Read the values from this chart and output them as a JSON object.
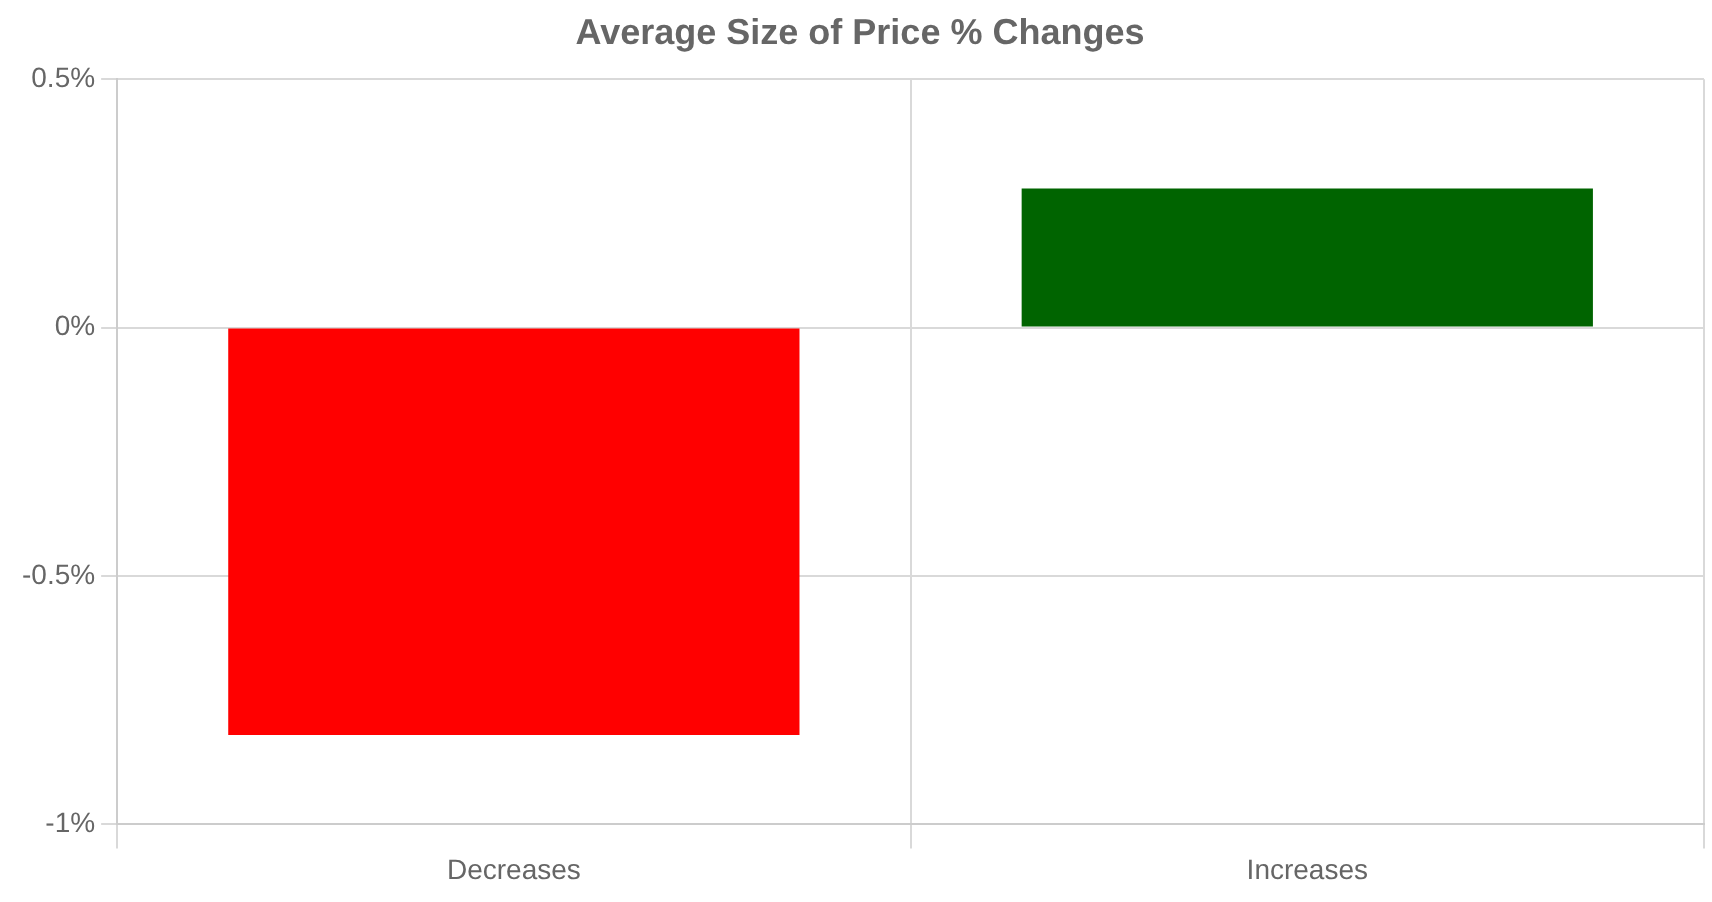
{
  "chart_data": {
    "type": "bar",
    "title": "Average Size of Price % Changes",
    "categories": [
      "Decreases",
      "Increases"
    ],
    "values": [
      -0.82,
      0.28
    ],
    "colors": [
      "#ff0000",
      "#006400"
    ],
    "ylim": [
      -1,
      0.5
    ],
    "yticks": [
      {
        "value": -1,
        "label": "-1%"
      },
      {
        "value": -0.5,
        "label": "-0.5%"
      },
      {
        "value": 0,
        "label": "0%"
      },
      {
        "value": 0.5,
        "label": "0.5%"
      }
    ],
    "grid": true,
    "legend": false
  }
}
